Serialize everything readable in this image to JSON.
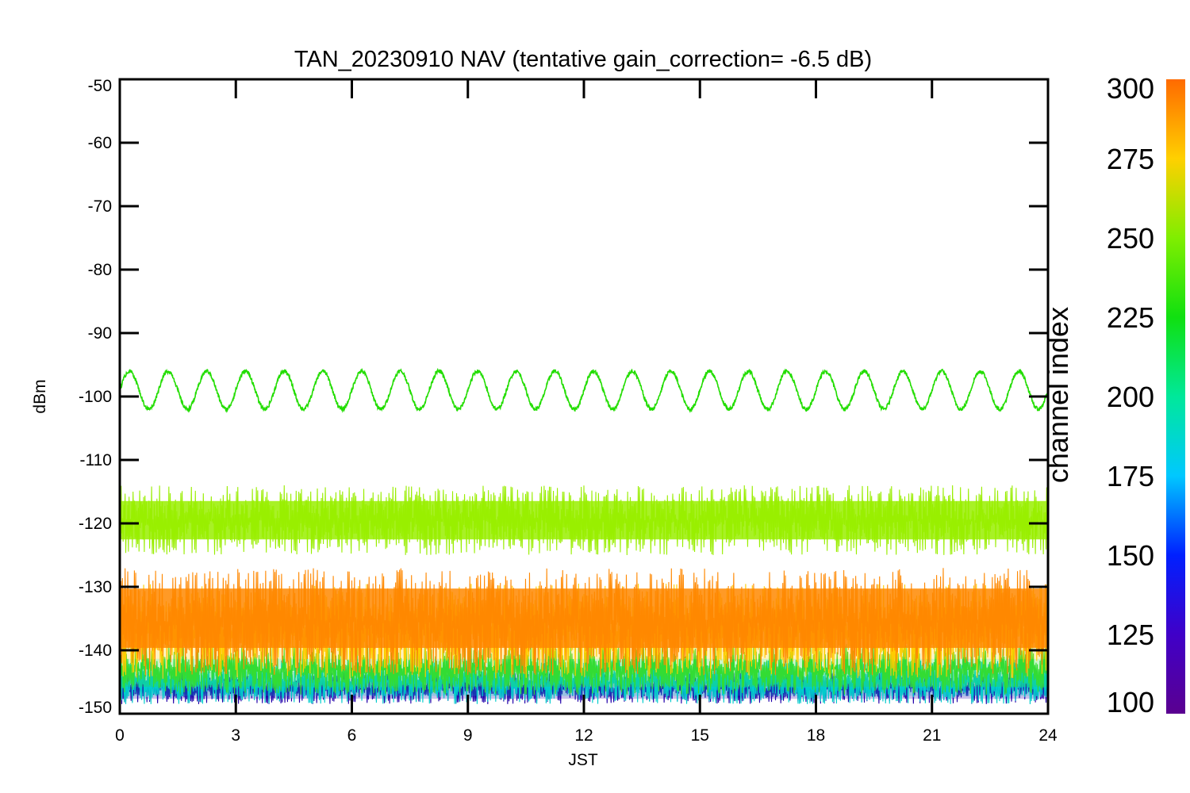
{
  "chart_data": {
    "type": "line",
    "title": "TAN_20230910 NAV (tentative gain_correction= -6.5 dB)",
    "xlabel": "JST",
    "ylabel": "dBm",
    "xlim": [
      0,
      24
    ],
    "ylim": [
      -150,
      -50
    ],
    "x_ticks": [
      "0",
      "3",
      "6",
      "9",
      "12",
      "15",
      "18",
      "21",
      "24"
    ],
    "y_ticks": [
      "-50",
      "-60",
      "-70",
      "-80",
      "-90",
      "-100",
      "-110",
      "-120",
      "-130",
      "-140",
      "-150"
    ],
    "colorbar": {
      "label": "channel index",
      "range": [
        100,
        300
      ],
      "ticks": [
        "300",
        "275",
        "250",
        "225",
        "200",
        "175",
        "150",
        "125",
        "100"
      ]
    },
    "series": [
      {
        "channel": 245,
        "color": "#22dd00",
        "description_of_shape": "sinusoid",
        "mean_dBm": -99,
        "amplitude_dB": 3,
        "period_hours": 1.0,
        "x_start": 0,
        "x_end": 24
      },
      {
        "channel": 262,
        "color": "#99ee00",
        "mean_dBm": -119.5,
        "spread_dB": [
          -125,
          -114
        ],
        "x_start": 0,
        "x_end": 24
      },
      {
        "channel": 285,
        "color": "#ff8800",
        "mean_dBm": -135.5,
        "spread_dB": [
          -143,
          -126
        ],
        "x_start": 0,
        "x_end": 24
      },
      {
        "channel": 270,
        "color": "#ffcc00",
        "mean_dBm": -137,
        "spread_dB": [
          -145,
          -130
        ],
        "x_start": 0,
        "x_end": 24
      },
      {
        "channel": 230,
        "color": "#33dd33",
        "mean_dBm": -143,
        "spread_dB": [
          -148,
          -140
        ],
        "x_start": 0,
        "x_end": 24
      },
      {
        "channel": 180,
        "color": "#00cccc",
        "mean_dBm": -145,
        "spread_dB": [
          -149,
          -142
        ],
        "x_start": 0,
        "x_end": 24
      },
      {
        "channel": 130,
        "color": "#2200aa",
        "mean_dBm": -146,
        "spread_dB": [
          -149,
          -144
        ],
        "x_start": 0,
        "x_end": 24
      }
    ]
  }
}
